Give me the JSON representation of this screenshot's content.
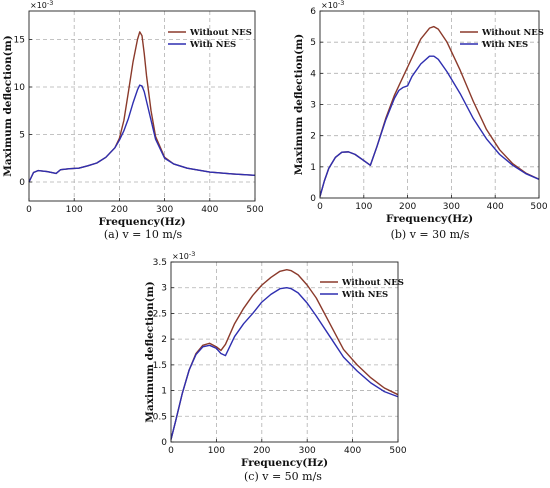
{
  "chart_data": [
    {
      "type": "line",
      "caption": "(a) v = 10 m/s",
      "xlabel": "Frequency(Hz)",
      "ylabel": "Maximum deflection(m)",
      "y_exponent": "×10",
      "y_exponent_power": "-3",
      "xlim": [
        0,
        500
      ],
      "ylim": [
        -2,
        18
      ],
      "xticks": [
        0,
        100,
        200,
        300,
        400,
        500
      ],
      "yticks": [
        0,
        5,
        10,
        15
      ],
      "grid": true,
      "legend_position": "top-right",
      "series": [
        {
          "name": "Without NES",
          "color": "#8B3A2B",
          "x": [
            0,
            10,
            20,
            40,
            60,
            70,
            90,
            110,
            130,
            150,
            170,
            190,
            200,
            210,
            220,
            230,
            240,
            245,
            250,
            255,
            260,
            270,
            280,
            300,
            320,
            350,
            400,
            450,
            500
          ],
          "y": [
            0,
            1.0,
            1.2,
            1.1,
            0.9,
            1.3,
            1.4,
            1.45,
            1.7,
            2.0,
            2.6,
            3.6,
            4.6,
            6.5,
            9.5,
            12.6,
            15.0,
            15.8,
            15.4,
            13.5,
            11.2,
            7.5,
            4.8,
            2.6,
            1.9,
            1.45,
            1.05,
            0.85,
            0.7
          ]
        },
        {
          "name": "With NES",
          "color": "#2F2FB0",
          "x": [
            0,
            10,
            20,
            40,
            60,
            70,
            90,
            110,
            130,
            150,
            170,
            190,
            200,
            210,
            220,
            230,
            240,
            245,
            250,
            255,
            260,
            270,
            280,
            300,
            320,
            350,
            400,
            450,
            500
          ],
          "y": [
            0,
            1.0,
            1.2,
            1.1,
            0.9,
            1.3,
            1.4,
            1.45,
            1.7,
            2.0,
            2.6,
            3.6,
            4.4,
            5.4,
            6.7,
            8.3,
            9.7,
            10.2,
            10.1,
            9.5,
            8.5,
            6.5,
            4.5,
            2.5,
            1.9,
            1.45,
            1.05,
            0.85,
            0.7
          ]
        }
      ]
    },
    {
      "type": "line",
      "caption": "(b) v = 30 m/s",
      "xlabel": "Frequency(Hz)",
      "ylabel": "Maximum deflection(m)",
      "y_exponent": "×10",
      "y_exponent_power": "-3",
      "xlim": [
        0,
        500
      ],
      "ylim": [
        0,
        6
      ],
      "xticks": [
        0,
        100,
        200,
        300,
        400,
        500
      ],
      "yticks": [
        0,
        1,
        2,
        3,
        4,
        5,
        6
      ],
      "grid": true,
      "legend_position": "top-right",
      "series": [
        {
          "name": "Without NES",
          "color": "#8B3A2B",
          "x": [
            0,
            10,
            20,
            35,
            50,
            65,
            80,
            100,
            115,
            130,
            150,
            170,
            190,
            210,
            230,
            250,
            260,
            270,
            290,
            320,
            350,
            380,
            410,
            440,
            470,
            500
          ],
          "y": [
            0.05,
            0.55,
            0.95,
            1.3,
            1.47,
            1.48,
            1.4,
            1.2,
            1.05,
            1.65,
            2.55,
            3.3,
            3.9,
            4.5,
            5.1,
            5.45,
            5.5,
            5.42,
            5.0,
            4.1,
            3.1,
            2.2,
            1.55,
            1.1,
            0.8,
            0.6
          ]
        },
        {
          "name": "With NES",
          "color": "#2F2FB0",
          "x": [
            0,
            10,
            20,
            35,
            50,
            65,
            80,
            100,
            115,
            130,
            150,
            170,
            180,
            190,
            200,
            210,
            230,
            250,
            260,
            270,
            290,
            320,
            350,
            380,
            410,
            440,
            470,
            500
          ],
          "y": [
            0.05,
            0.55,
            0.95,
            1.3,
            1.47,
            1.48,
            1.4,
            1.2,
            1.05,
            1.65,
            2.5,
            3.2,
            3.45,
            3.55,
            3.6,
            3.9,
            4.3,
            4.55,
            4.55,
            4.45,
            4.05,
            3.35,
            2.55,
            1.9,
            1.4,
            1.05,
            0.78,
            0.6
          ]
        }
      ]
    },
    {
      "type": "line",
      "caption": "(c) v = 50 m/s",
      "xlabel": "Frequency(Hz)",
      "ylabel": "Maximum deflection(m)",
      "y_exponent": "×10",
      "y_exponent_power": "-3",
      "xlim": [
        0,
        500
      ],
      "ylim": [
        0,
        3.5
      ],
      "xticks": [
        0,
        100,
        200,
        300,
        400,
        500
      ],
      "yticks": [
        0,
        0.5,
        1,
        1.5,
        2,
        2.5,
        3,
        3.5
      ],
      "grid": true,
      "legend_position": "top-right",
      "series": [
        {
          "name": "Without NES",
          "color": "#8B3A2B",
          "x": [
            0,
            10,
            25,
            40,
            55,
            70,
            85,
            100,
            110,
            120,
            140,
            160,
            180,
            200,
            220,
            240,
            255,
            265,
            280,
            300,
            320,
            350,
            380,
            410,
            440,
            470,
            500
          ],
          "y": [
            0.05,
            0.4,
            0.95,
            1.4,
            1.72,
            1.88,
            1.92,
            1.85,
            1.78,
            1.9,
            2.3,
            2.6,
            2.85,
            3.05,
            3.2,
            3.32,
            3.35,
            3.33,
            3.25,
            3.05,
            2.8,
            2.3,
            1.8,
            1.5,
            1.25,
            1.05,
            0.92
          ]
        },
        {
          "name": "With NES",
          "color": "#2F2FB0",
          "x": [
            0,
            10,
            25,
            40,
            55,
            70,
            85,
            100,
            110,
            120,
            140,
            160,
            180,
            200,
            220,
            240,
            255,
            265,
            280,
            300,
            320,
            350,
            380,
            410,
            440,
            470,
            500
          ],
          "y": [
            0.05,
            0.4,
            0.95,
            1.4,
            1.7,
            1.85,
            1.88,
            1.82,
            1.72,
            1.68,
            2.05,
            2.3,
            2.5,
            2.72,
            2.87,
            2.98,
            3.0,
            2.98,
            2.9,
            2.7,
            2.45,
            2.05,
            1.65,
            1.38,
            1.15,
            0.98,
            0.88
          ]
        }
      ]
    }
  ]
}
